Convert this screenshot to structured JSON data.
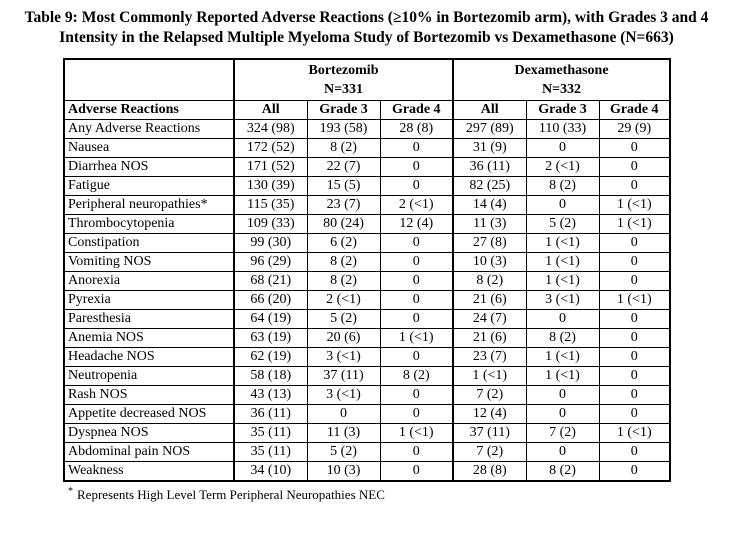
{
  "title": {
    "line1": "Table 9: Most Commonly Reported Adverse Reactions (≥10% in Bortezomib arm), with Grades 3 and 4",
    "line2": "Intensity in the Relapsed Multiple Myeloma Study of Bortezomib vs Dexamethasone (N=663)"
  },
  "table": {
    "groups": [
      {
        "name": "Bortezomib",
        "n": "N=331"
      },
      {
        "name": "Dexamethasone",
        "n": "N=332"
      }
    ],
    "columns": [
      "Adverse Reactions",
      "All",
      "Grade 3",
      "Grade 4",
      "All",
      "Grade 3",
      "Grade 4"
    ],
    "rows": [
      [
        "Any Adverse Reactions",
        "324 (98)",
        "193 (58)",
        "28 (8)",
        "297 (89)",
        "110 (33)",
        "29 (9)"
      ],
      [
        "Nausea",
        "172 (52)",
        "8 (2)",
        "0",
        "31 (9)",
        "0",
        "0"
      ],
      [
        "Diarrhea NOS",
        "171 (52)",
        "22 (7)",
        "0",
        "36 (11)",
        "2 (<1)",
        "0"
      ],
      [
        "Fatigue",
        "130 (39)",
        "15 (5)",
        "0",
        "82 (25)",
        "8 (2)",
        "0"
      ],
      [
        "Peripheral neuropathies*",
        "115 (35)",
        "23 (7)",
        "2 (<1)",
        "14 (4)",
        "0",
        "1 (<1)"
      ],
      [
        "Thrombocytopenia",
        "109 (33)",
        "80 (24)",
        "12 (4)",
        "11 (3)",
        "5 (2)",
        "1 (<1)"
      ],
      [
        "Constipation",
        "99 (30)",
        "6 (2)",
        "0",
        "27 (8)",
        "1 (<1)",
        "0"
      ],
      [
        "Vomiting NOS",
        "96 (29)",
        "8 (2)",
        "0",
        "10 (3)",
        "1 (<1)",
        "0"
      ],
      [
        "Anorexia",
        "68 (21)",
        "8 (2)",
        "0",
        "8 (2)",
        "1 (<1)",
        "0"
      ],
      [
        "Pyrexia",
        "66 (20)",
        "2 (<1)",
        "0",
        "21 (6)",
        "3 (<1)",
        "1 (<1)"
      ],
      [
        "Paresthesia",
        "64 (19)",
        "5 (2)",
        "0",
        "24 (7)",
        "0",
        "0"
      ],
      [
        "Anemia NOS",
        "63 (19)",
        "20 (6)",
        "1 (<1)",
        "21 (6)",
        "8 (2)",
        "0"
      ],
      [
        "Headache NOS",
        "62 (19)",
        "3 (<1)",
        "0",
        "23 (7)",
        "1 (<1)",
        "0"
      ],
      [
        "Neutropenia",
        "58 (18)",
        "37 (11)",
        "8 (2)",
        "1 (<1)",
        "1 (<1)",
        "0"
      ],
      [
        "Rash NOS",
        "43 (13)",
        "3 (<1)",
        "0",
        "7 (2)",
        "0",
        "0"
      ],
      [
        "Appetite decreased NOS",
        "36 (11)",
        "0",
        "0",
        "12 (4)",
        "0",
        "0"
      ],
      [
        "Dyspnea NOS",
        "35 (11)",
        "11 (3)",
        "1 (<1)",
        "37 (11)",
        "7 (2)",
        "1 (<1)"
      ],
      [
        "Abdominal pain NOS",
        "35 (11)",
        "5 (2)",
        "0",
        "7 (2)",
        "0",
        "0"
      ],
      [
        "Weakness",
        "34 (10)",
        "10 (3)",
        "0",
        "28 (8)",
        "8 (2)",
        "0"
      ]
    ]
  },
  "footnote": {
    "marker": "*",
    "text": "Represents High Level Term Peripheral Neuropathies NEC"
  },
  "colors": {
    "text": "#000000",
    "border": "#000000",
    "background": "#ffffff"
  }
}
